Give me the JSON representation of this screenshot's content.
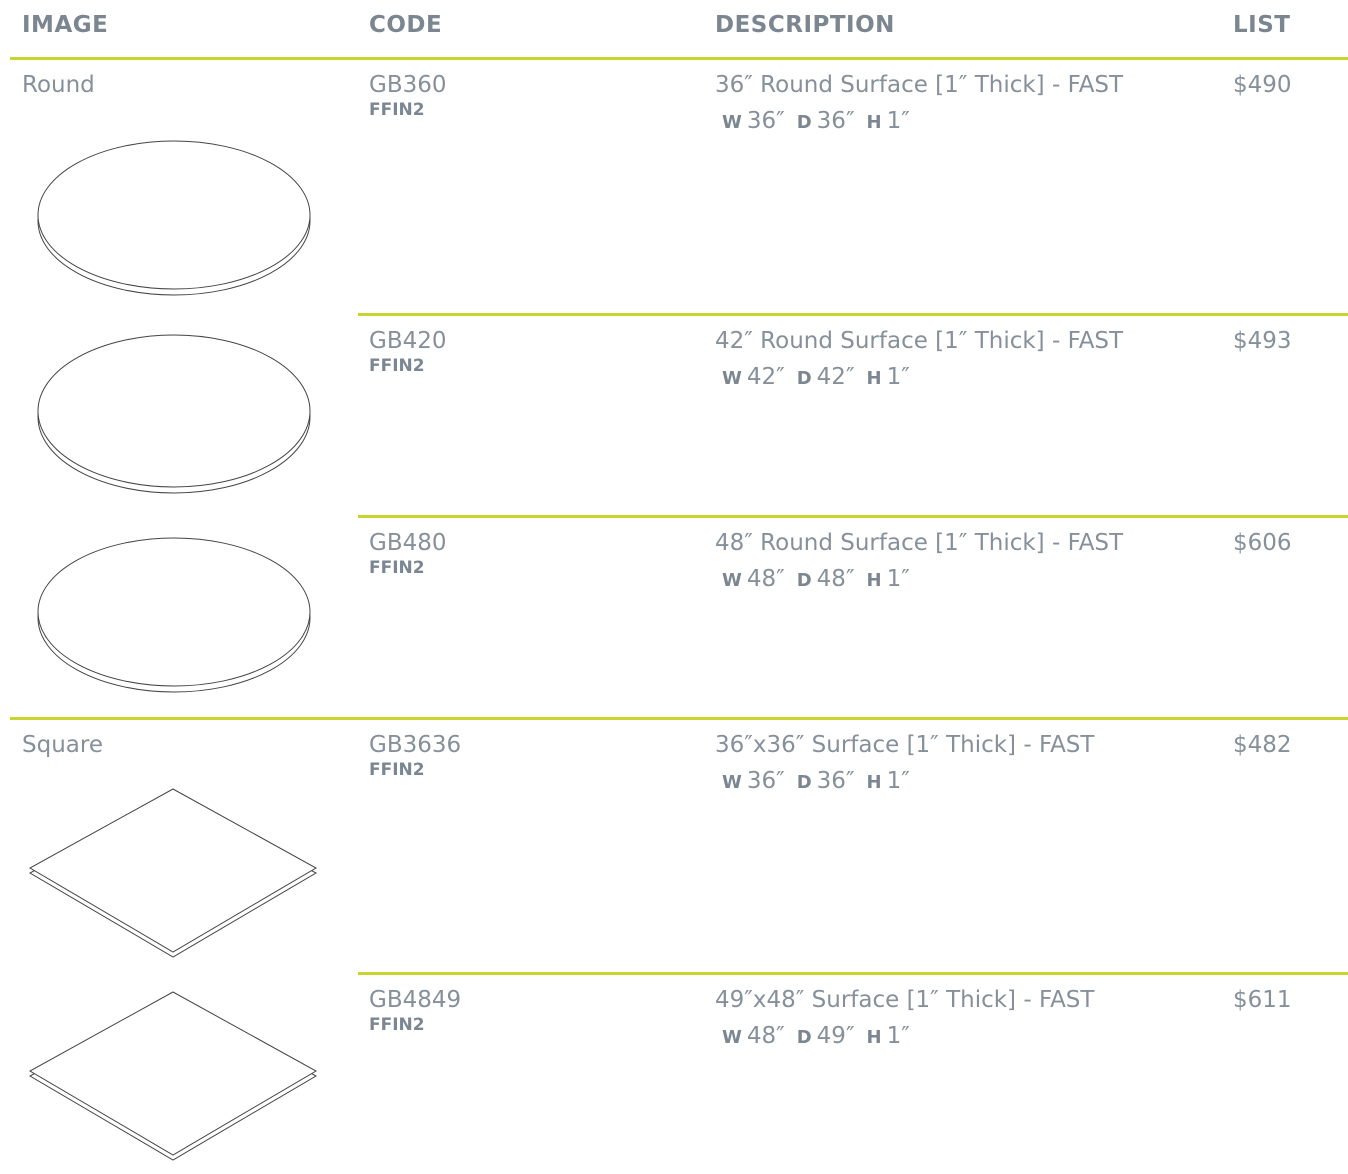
{
  "header": [
    "IMAGE",
    "CODE",
    "DESCRIPTION",
    "LIST"
  ],
  "groups": [
    {
      "label": "Round",
      "rows": [
        {
          "code": "GB360",
          "finish": "FFIN2",
          "description": "36″ Round Surface [1″ Thick] - FAST",
          "dims": [
            {
              "label": "W",
              "value": "36″"
            },
            {
              "label": "D",
              "value": "36″"
            },
            {
              "label": "H",
              "value": "1″"
            }
          ],
          "price": "$490"
        },
        {
          "code": "GB420",
          "finish": "FFIN2",
          "description": "42″ Round Surface [1″ Thick] - FAST",
          "dims": [
            {
              "label": "W",
              "value": "42″"
            },
            {
              "label": "D",
              "value": "42″"
            },
            {
              "label": "H",
              "value": "1″"
            }
          ],
          "price": "$493"
        },
        {
          "code": "GB480",
          "finish": "FFIN2",
          "description": "48″ Round Surface [1″ Thick] - FAST",
          "dims": [
            {
              "label": "W",
              "value": "48″"
            },
            {
              "label": "D",
              "value": "48″"
            },
            {
              "label": "H",
              "value": "1″"
            }
          ],
          "price": "$606"
        }
      ]
    },
    {
      "label": "Square",
      "rows": [
        {
          "code": "GB3636",
          "finish": "FFIN2",
          "description": "36″x36″ Surface [1″ Thick] - FAST",
          "dims": [
            {
              "label": "W",
              "value": "36″"
            },
            {
              "label": "D",
              "value": "36″"
            },
            {
              "label": "H",
              "value": "1″"
            }
          ],
          "price": "$482"
        },
        {
          "code": "GB4849",
          "finish": "FFIN2",
          "description": "49″x48″ Surface [1″ Thick] - FAST",
          "dims": [
            {
              "label": "W",
              "value": "48″"
            },
            {
              "label": "D",
              "value": "49″"
            },
            {
              "label": "H",
              "value": "1″"
            }
          ],
          "price": "$611"
        }
      ]
    }
  ]
}
